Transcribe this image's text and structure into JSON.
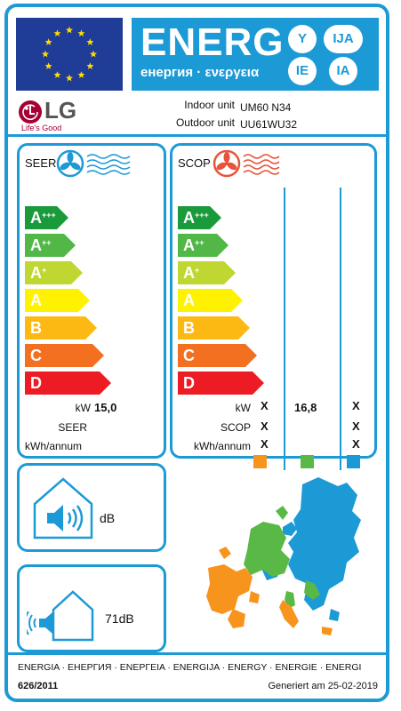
{
  "header": {
    "energy_word": "ENERG",
    "energy_subtitle": "енергия · ενεργεια",
    "lang_codes": [
      "Y",
      "IJA",
      "IE",
      "IA"
    ]
  },
  "supplier": {
    "brand": "LG",
    "tagline": "Life's Good",
    "indoor_label": "Indoor unit",
    "indoor_value": "UM60 N34",
    "outdoor_label": "Outdoor unit",
    "outdoor_value": "UU61WU32"
  },
  "cooling": {
    "title": "SEER",
    "classes": [
      {
        "label": "A",
        "sup": "+++",
        "color": "#1a9a3a"
      },
      {
        "label": "A",
        "sup": "++",
        "color": "#51b747"
      },
      {
        "label": "A",
        "sup": "+",
        "color": "#bfd730"
      },
      {
        "label": "A",
        "sup": "",
        "color": "#fff200"
      },
      {
        "label": "B",
        "sup": "",
        "color": "#fdb913"
      },
      {
        "label": "C",
        "sup": "",
        "color": "#f37021"
      },
      {
        "label": "D",
        "sup": "",
        "color": "#ed1c24"
      }
    ],
    "kw_label": "kW",
    "kw_value": "15,0",
    "seer_label": "SEER",
    "kwh_label": "kWh/annum"
  },
  "heating": {
    "title": "SCOP",
    "classes": [
      {
        "label": "A",
        "sup": "+++",
        "color": "#1a9a3a"
      },
      {
        "label": "A",
        "sup": "++",
        "color": "#51b747"
      },
      {
        "label": "A",
        "sup": "+",
        "color": "#bfd730"
      },
      {
        "label": "A",
        "sup": "",
        "color": "#fff200"
      },
      {
        "label": "B",
        "sup": "",
        "color": "#fdb913"
      },
      {
        "label": "C",
        "sup": "",
        "color": "#f37021"
      },
      {
        "label": "D",
        "sup": "",
        "color": "#ed1c24"
      }
    ],
    "kw_label": "kW",
    "scop_label": "SCOP",
    "kwh_label": "kWh/annum",
    "col1": {
      "kw": "X",
      "scop": "X",
      "kwh": "X"
    },
    "col2": {
      "kw": "16,8"
    },
    "col3": {
      "kw": "X",
      "scop": "X",
      "kwh": "X"
    },
    "zone_colors": [
      "#f7941d",
      "#5ab946",
      "#1c9ad6"
    ]
  },
  "noise": {
    "indoor_value": "dB",
    "outdoor_value": "71dB"
  },
  "footer": {
    "languages": "ENERGIA · ЕНЕРГИЯ · ΕΝΕΡΓΕΙΑ · ENERGIJA · ENERGY · ENERGIE · ENERGI",
    "regulation": "626/2011",
    "generated": "Generiert am 25-02-2019"
  }
}
